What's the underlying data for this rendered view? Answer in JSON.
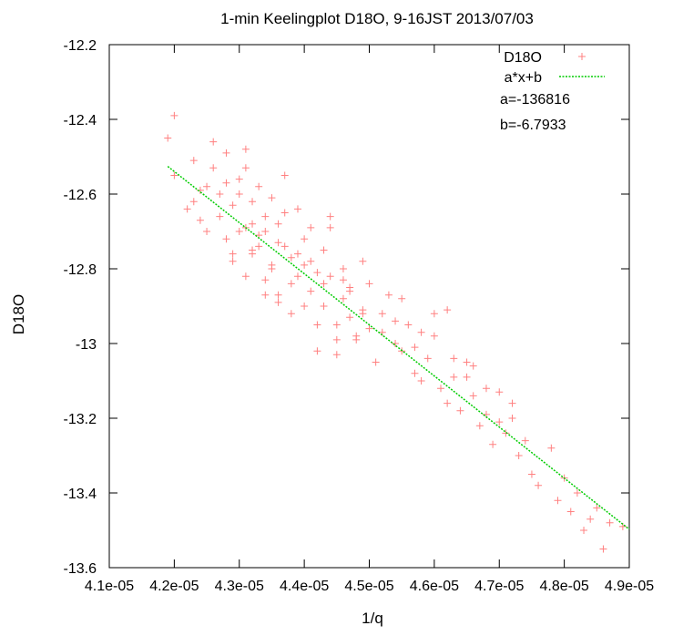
{
  "chart_data": {
    "type": "scatter",
    "title": "1-min Keelingplot D18O, 9-16JST 2013/07/03",
    "xlabel": "1/q",
    "ylabel": "D18O",
    "xlim": [
      4.1e-05,
      4.9e-05
    ],
    "ylim": [
      -13.6,
      -12.2
    ],
    "x_ticks": [
      4.1e-05,
      4.2e-05,
      4.3e-05,
      4.4e-05,
      4.5e-05,
      4.6e-05,
      4.7e-05,
      4.8e-05,
      4.9e-05
    ],
    "x_tick_labels": [
      "4.1e-05",
      "4.2e-05",
      "4.3e-05",
      "4.4e-05",
      "4.5e-05",
      "4.6e-05",
      "4.7e-05",
      "4.8e-05",
      "4.9e-05"
    ],
    "y_ticks": [
      -12.2,
      -12.4,
      -12.6,
      -12.8,
      -13.0,
      -13.2,
      -13.4,
      -13.6
    ],
    "y_tick_labels": [
      "-12.2",
      "-12.4",
      "-12.6",
      "-12.8",
      "-13",
      "-13.2",
      "-13.4",
      "-13.6"
    ],
    "grid": false,
    "legend": "top-right",
    "series": [
      {
        "name": "D18O",
        "kind": "points",
        "marker": "+",
        "color": "#ff8080",
        "x": [
          4.19e-05,
          4.2e-05,
          4.2e-05,
          4.22e-05,
          4.23e-05,
          4.24e-05,
          4.25e-05,
          4.26e-05,
          4.27e-05,
          4.28e-05,
          4.28e-05,
          4.29e-05,
          4.3e-05,
          4.31e-05,
          4.31e-05,
          4.32e-05,
          4.32e-05,
          4.33e-05,
          4.34e-05,
          4.35e-05,
          4.36e-05,
          4.37e-05,
          4.38e-05,
          4.39e-05,
          4.4e-05,
          4.41e-05,
          4.42e-05,
          4.43e-05,
          4.44e-05,
          4.45e-05,
          4.46e-05,
          4.47e-05,
          4.48e-05,
          4.49e-05,
          4.5e-05,
          4.51e-05,
          4.52e-05,
          4.53e-05,
          4.54e-05,
          4.55e-05,
          4.56e-05,
          4.57e-05,
          4.58e-05,
          4.59e-05,
          4.6e-05,
          4.61e-05,
          4.62e-05,
          4.63e-05,
          4.64e-05,
          4.65e-05,
          4.66e-05,
          4.67e-05,
          4.68e-05,
          4.69e-05,
          4.7e-05,
          4.71e-05,
          4.72e-05,
          4.73e-05,
          4.74e-05,
          4.75e-05,
          4.76e-05,
          4.78e-05,
          4.79e-05,
          4.8e-05,
          4.81e-05,
          4.82e-05,
          4.83e-05,
          4.84e-05,
          4.85e-05,
          4.86e-05,
          4.87e-05,
          4.89e-05,
          4.23e-05,
          4.25e-05,
          4.27e-05,
          4.29e-05,
          4.3e-05,
          4.31e-05,
          4.33e-05,
          4.34e-05,
          4.35e-05,
          4.36e-05,
          4.37e-05,
          4.38e-05,
          4.39e-05,
          4.4e-05,
          4.41e-05,
          4.42e-05,
          4.43e-05,
          4.44e-05,
          4.45e-05,
          4.46e-05,
          4.47e-05,
          4.48e-05,
          4.49e-05,
          4.3e-05,
          4.32e-05,
          4.34e-05,
          4.36e-05,
          4.38e-05,
          4.4e-05,
          4.42e-05,
          4.44e-05,
          4.31e-05,
          4.33e-05,
          4.35e-05,
          4.37e-05,
          4.39e-05,
          4.28e-05,
          4.26e-05,
          4.24e-05,
          4.34e-05,
          4.36e-05,
          4.32e-05,
          4.29e-05,
          4.41e-05,
          4.43e-05,
          4.45e-05,
          4.47e-05,
          4.5e-05,
          4.52e-05,
          4.55e-05,
          4.57e-05,
          4.6e-05,
          4.62e-05,
          4.65e-05,
          4.68e-05,
          4.7e-05,
          4.72e-05,
          4.66e-05,
          4.63e-05,
          4.58e-05,
          4.54e-05,
          4.49e-05,
          4.46e-05
        ],
        "y": [
          -12.45,
          -12.39,
          -12.55,
          -12.64,
          -12.51,
          -12.67,
          -12.58,
          -12.46,
          -12.6,
          -12.72,
          -12.49,
          -12.63,
          -12.56,
          -12.48,
          -12.69,
          -12.75,
          -12.62,
          -12.71,
          -12.66,
          -12.79,
          -12.68,
          -12.74,
          -12.77,
          -12.82,
          -12.72,
          -12.86,
          -12.81,
          -12.9,
          -12.69,
          -12.95,
          -12.88,
          -12.93,
          -12.98,
          -12.91,
          -12.96,
          -13.05,
          -12.92,
          -12.87,
          -13.0,
          -13.02,
          -12.95,
          -13.08,
          -13.1,
          -13.04,
          -12.92,
          -13.12,
          -13.16,
          -13.09,
          -13.18,
          -13.05,
          -13.14,
          -13.22,
          -13.19,
          -13.27,
          -13.13,
          -13.24,
          -13.2,
          -13.3,
          -13.26,
          -13.35,
          -13.38,
          -13.28,
          -13.42,
          -13.36,
          -13.45,
          -13.4,
          -13.5,
          -13.47,
          -13.44,
          -13.55,
          -13.48,
          -13.49,
          -12.62,
          -12.7,
          -12.66,
          -12.76,
          -12.6,
          -12.82,
          -12.74,
          -12.7,
          -12.8,
          -12.87,
          -12.65,
          -12.84,
          -12.76,
          -12.9,
          -12.78,
          -12.95,
          -12.84,
          -12.66,
          -13.03,
          -12.8,
          -12.86,
          -12.99,
          -12.78,
          -12.7,
          -12.76,
          -12.87,
          -12.73,
          -12.92,
          -12.79,
          -13.02,
          -12.82,
          -12.53,
          -12.58,
          -12.61,
          -12.55,
          -12.64,
          -12.57,
          -12.53,
          -12.59,
          -12.83,
          -12.89,
          -12.68,
          -12.78,
          -12.69,
          -12.75,
          -12.99,
          -12.85,
          -12.84,
          -12.97,
          -12.88,
          -13.01,
          -12.98,
          -12.91,
          -13.09,
          -13.12,
          -13.21,
          -13.16,
          -13.06,
          -13.04,
          -12.97,
          -12.94,
          -12.92,
          -12.83
        ]
      },
      {
        "name": "a*x+b",
        "kind": "line",
        "color": "#00cc00",
        "slope": -136816,
        "intercept": -6.7933,
        "x_range": [
          4.19e-05,
          4.9e-05
        ]
      }
    ],
    "annotations": [
      "a=-136816",
      "b=-6.7933"
    ]
  }
}
